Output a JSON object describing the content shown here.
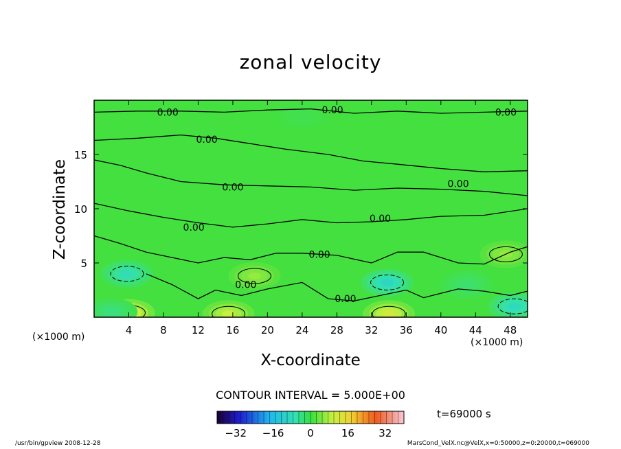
{
  "chart_data": {
    "type": "heatmap",
    "title": "zonal velocity",
    "xlabel": "X-coordinate",
    "ylabel": "Z-coordinate",
    "x_unit": "(×1000 m)",
    "z_unit": "(×1000 m)",
    "xlim": [
      0,
      50
    ],
    "ylim": [
      0,
      20
    ],
    "x_ticks": [
      4,
      8,
      12,
      16,
      20,
      24,
      28,
      32,
      36,
      40,
      44,
      48
    ],
    "y_ticks": [
      5,
      10,
      15
    ],
    "contour_interval": "CONTOUR INTERVAL = 5.000E+00",
    "zero_contour_label": "0.00",
    "colorbar": {
      "ticks": [
        -32,
        -16,
        0,
        16,
        32
      ],
      "range": [
        -40,
        40
      ]
    },
    "time": "t=69000 s",
    "features": [
      {
        "x": 3.8,
        "z": 4.0,
        "value": -8
      },
      {
        "x": 4.0,
        "z": 0.4,
        "value": 14
      },
      {
        "x": 2.0,
        "z": 0.5,
        "value": -4
      },
      {
        "x": 15.5,
        "z": 0.3,
        "value": 10
      },
      {
        "x": 18.5,
        "z": 3.8,
        "value": 6
      },
      {
        "x": 33.8,
        "z": 3.2,
        "value": -10
      },
      {
        "x": 34.0,
        "z": 0.3,
        "value": 12
      },
      {
        "x": 43.0,
        "z": 3.0,
        "value": -3
      },
      {
        "x": 47.5,
        "z": 5.8,
        "value": 6
      },
      {
        "x": 48.5,
        "z": 1.0,
        "value": -9
      },
      {
        "x": 24.0,
        "z": 18.5,
        "value": -1
      }
    ]
  },
  "footer": {
    "left": "/usr/bin/gpview   2008-12-28",
    "right": "MarsCond_VelX.nc@VelX,x=0:50000,z=0:20000,t=069000"
  }
}
